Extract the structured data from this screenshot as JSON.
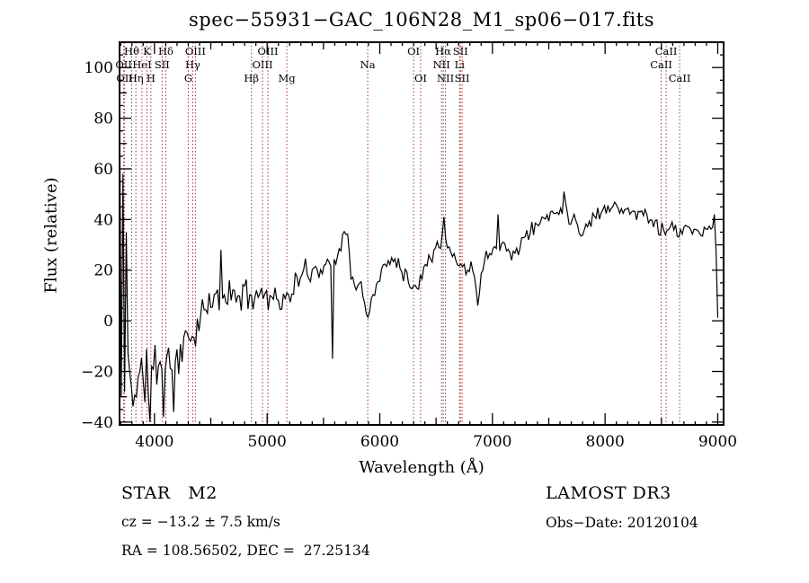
{
  "chart_data": {
    "type": "line",
    "title": "spec−55931−GAC_106N28_M1_sp06−017.fits",
    "xlabel": "Wavelength (Å)",
    "ylabel": "Flux (relative)",
    "xlim": [
      3690,
      9052
    ],
    "ylim": [
      -41.1,
      110
    ],
    "x_tick_labels": [
      4000,
      5000,
      6000,
      7000,
      8000,
      9000
    ],
    "y_tick_labels": [
      100,
      80,
      60,
      40,
      20,
      0,
      -20,
      -40
    ],
    "x_minor_step": 100,
    "x_mid_step": 500,
    "y_minor_step": 5,
    "y_mid_step": 10,
    "grid": false,
    "legend": "none",
    "spectrum_color": "#000000",
    "line_marker_color": "#9b3434",
    "envelope": [
      [
        3690,
        20,
        80
      ],
      [
        3700,
        5,
        75
      ],
      [
        3712,
        0,
        65
      ],
      [
        3725,
        -8,
        50
      ],
      [
        3740,
        -15,
        35
      ],
      [
        3760,
        -20,
        25
      ],
      [
        3790,
        -23,
        18
      ],
      [
        3830,
        -26,
        16
      ],
      [
        3870,
        -24,
        15
      ],
      [
        3910,
        -22,
        15
      ],
      [
        3950,
        -21,
        14
      ],
      [
        3990,
        -19,
        13
      ],
      [
        4030,
        -17,
        13
      ],
      [
        4070,
        -16,
        12
      ],
      [
        4110,
        -15,
        12
      ],
      [
        4150,
        -17,
        13
      ],
      [
        4190,
        -14,
        12
      ],
      [
        4230,
        -12,
        11
      ],
      [
        4270,
        -9,
        10
      ],
      [
        4310,
        -7,
        10
      ],
      [
        4350,
        -4,
        9
      ],
      [
        4390,
        -1,
        9
      ],
      [
        4430,
        2,
        8
      ],
      [
        4470,
        5,
        8
      ],
      [
        4510,
        7,
        8
      ],
      [
        4560,
        9,
        8
      ],
      [
        4610,
        10,
        8
      ],
      [
        4680,
        10,
        8
      ],
      [
        4750,
        10,
        7
      ],
      [
        4820,
        10,
        7
      ],
      [
        4890,
        11,
        7
      ],
      [
        4960,
        11,
        7
      ],
      [
        5030,
        10,
        7
      ],
      [
        5100,
        9,
        6
      ],
      [
        5160,
        7,
        6
      ],
      [
        5220,
        12,
        6
      ],
      [
        5280,
        16,
        6
      ],
      [
        5340,
        19,
        6
      ],
      [
        5400,
        20,
        6
      ],
      [
        5460,
        21,
        6
      ],
      [
        5520,
        22,
        6
      ],
      [
        5570,
        23,
        6
      ],
      [
        5620,
        27,
        6
      ],
      [
        5660,
        32,
        6
      ],
      [
        5695,
        35,
        5
      ],
      [
        5725,
        28,
        6
      ],
      [
        5755,
        17,
        5
      ],
      [
        5790,
        12,
        4
      ],
      [
        5825,
        14,
        4
      ],
      [
        5855,
        10,
        3
      ],
      [
        5875,
        4,
        2
      ],
      [
        5890,
        1.5,
        1
      ],
      [
        5905,
        1.5,
        1
      ],
      [
        5918,
        6,
        3
      ],
      [
        5945,
        12,
        4
      ],
      [
        5975,
        15,
        4
      ],
      [
        6010,
        18,
        4
      ],
      [
        6050,
        21,
        5
      ],
      [
        6090,
        24,
        5
      ],
      [
        6130,
        25,
        5
      ],
      [
        6170,
        23,
        5
      ],
      [
        6210,
        20,
        5
      ],
      [
        6250,
        17,
        5
      ],
      [
        6285,
        13,
        4
      ],
      [
        6310,
        11,
        4
      ],
      [
        6340,
        15,
        4
      ],
      [
        6375,
        20,
        5
      ],
      [
        6410,
        24,
        5
      ],
      [
        6450,
        27,
        5
      ],
      [
        6490,
        29,
        5
      ],
      [
        6530,
        32,
        5
      ],
      [
        6560,
        34,
        5
      ],
      [
        6590,
        30,
        5
      ],
      [
        6625,
        27,
        4
      ],
      [
        6660,
        25,
        4
      ],
      [
        6695,
        23,
        4
      ],
      [
        6730,
        22,
        4
      ],
      [
        6765,
        20,
        4
      ],
      [
        6800,
        21,
        4
      ],
      [
        6835,
        19,
        4
      ],
      [
        6862,
        12,
        4
      ],
      [
        6880,
        12,
        4
      ],
      [
        6900,
        19,
        4
      ],
      [
        6935,
        24,
        4
      ],
      [
        6970,
        27,
        4
      ],
      [
        7005,
        29,
        4
      ],
      [
        7045,
        32,
        5
      ],
      [
        7080,
        31,
        4
      ],
      [
        7120,
        28,
        4
      ],
      [
        7160,
        26,
        4
      ],
      [
        7200,
        27,
        4
      ],
      [
        7250,
        31,
        4
      ],
      [
        7300,
        33,
        4
      ],
      [
        7350,
        36,
        4
      ],
      [
        7400,
        38,
        4
      ],
      [
        7450,
        40,
        4
      ],
      [
        7500,
        42,
        4
      ],
      [
        7550,
        43,
        4
      ],
      [
        7600,
        44,
        4
      ],
      [
        7650,
        44,
        5
      ],
      [
        7700,
        41,
        4
      ],
      [
        7750,
        38,
        4
      ],
      [
        7800,
        35,
        4
      ],
      [
        7850,
        38,
        4
      ],
      [
        7900,
        41,
        4
      ],
      [
        7950,
        43,
        4
      ],
      [
        8000,
        44,
        4
      ],
      [
        8050,
        46,
        4
      ],
      [
        8100,
        46,
        4
      ],
      [
        8150,
        44,
        4
      ],
      [
        8200,
        43,
        4
      ],
      [
        8250,
        42,
        4
      ],
      [
        8300,
        43,
        4
      ],
      [
        8350,
        42,
        4
      ],
      [
        8400,
        41,
        4
      ],
      [
        8450,
        39,
        4
      ],
      [
        8490,
        35,
        3
      ],
      [
        8515,
        38,
        3
      ],
      [
        8545,
        34,
        3
      ],
      [
        8580,
        38,
        3
      ],
      [
        8620,
        37,
        3
      ],
      [
        8660,
        33,
        3
      ],
      [
        8700,
        36,
        3
      ],
      [
        8750,
        37,
        3
      ],
      [
        8800,
        36,
        3
      ],
      [
        8850,
        34,
        3
      ],
      [
        8900,
        35,
        3
      ],
      [
        8940,
        36,
        4
      ],
      [
        8965,
        38,
        4
      ],
      [
        8980,
        36,
        4
      ],
      [
        8988,
        20,
        8
      ],
      [
        8995,
        1,
        2
      ],
      [
        9010,
        1,
        2
      ]
    ],
    "spikes": [
      [
        3694,
        95
      ],
      [
        3699,
        -35
      ],
      [
        3705,
        75
      ],
      [
        3711,
        -30
      ],
      [
        3719,
        58
      ],
      [
        3728,
        -28
      ],
      [
        3745,
        35
      ],
      [
        3960,
        -40
      ],
      [
        4085,
        -38
      ],
      [
        4170,
        -36
      ],
      [
        4590,
        28
      ],
      [
        5585,
        -15
      ],
      [
        6563,
        41
      ],
      [
        6868,
        6
      ],
      [
        7055,
        42
      ],
      [
        7640,
        51
      ],
      [
        8975,
        42
      ]
    ],
    "sample_step_angstrom": 15,
    "spectral_lines": [
      {
        "wavelength": 3727,
        "label": "OII",
        "row": 2
      },
      {
        "wavelength": 3735,
        "label": "OII",
        "row": 3
      },
      {
        "wavelength": 3798,
        "label": "Hθ",
        "row": 1
      },
      {
        "wavelength": 3835,
        "label": "Hη",
        "row": 3
      },
      {
        "wavelength": 3889,
        "label": "HeI",
        "row": 2
      },
      {
        "wavelength": 3933,
        "label": "K",
        "row": 1
      },
      {
        "wavelength": 3968,
        "label": "H",
        "row": 3
      },
      {
        "wavelength": 4068,
        "label": "SII",
        "row": 2
      },
      {
        "wavelength": 4101,
        "label": "Hδ",
        "row": 1
      },
      {
        "wavelength": 4300,
        "label": "G",
        "row": 3
      },
      {
        "wavelength": 4340,
        "label": "Hγ",
        "row": 2
      },
      {
        "wavelength": 4363,
        "label": "OIII",
        "row": 1
      },
      {
        "wavelength": 4861,
        "label": "Hβ",
        "row": 3
      },
      {
        "wavelength": 4959,
        "label": "OIII",
        "row": 2
      },
      {
        "wavelength": 5007,
        "label": "OIII",
        "row": 1
      },
      {
        "wavelength": 5175,
        "label": "Mg",
        "row": 3
      },
      {
        "wavelength": 5893,
        "label": "Na",
        "row": 2
      },
      {
        "wavelength": 6300,
        "label": "OI",
        "row": 1
      },
      {
        "wavelength": 6363,
        "label": "OI",
        "row": 3
      },
      {
        "wavelength": 6548,
        "label": "NII",
        "row": 2
      },
      {
        "wavelength": 6563,
        "label": "Hα",
        "row": 1
      },
      {
        "wavelength": 6583,
        "label": "NII",
        "row": 3
      },
      {
        "wavelength": 6708,
        "label": "Li",
        "row": 2
      },
      {
        "wavelength": 6716,
        "label": "SII",
        "row": 1
      },
      {
        "wavelength": 6731,
        "label": "SII",
        "row": 3
      },
      {
        "wavelength": 8498,
        "label": "CaII",
        "row": 2
      },
      {
        "wavelength": 8542,
        "label": "CaII",
        "row": 1
      },
      {
        "wavelength": 8662,
        "label": "CaII",
        "row": 3
      }
    ]
  },
  "annotations": {
    "star_class": "STAR   M2",
    "cz": "cz = −13.2 ± 7.5 km/s",
    "radec": "RA = 108.56502, DEC =  27.25134",
    "survey": "LAMOST DR3",
    "obs_date": "Obs−Date: 20120104"
  }
}
